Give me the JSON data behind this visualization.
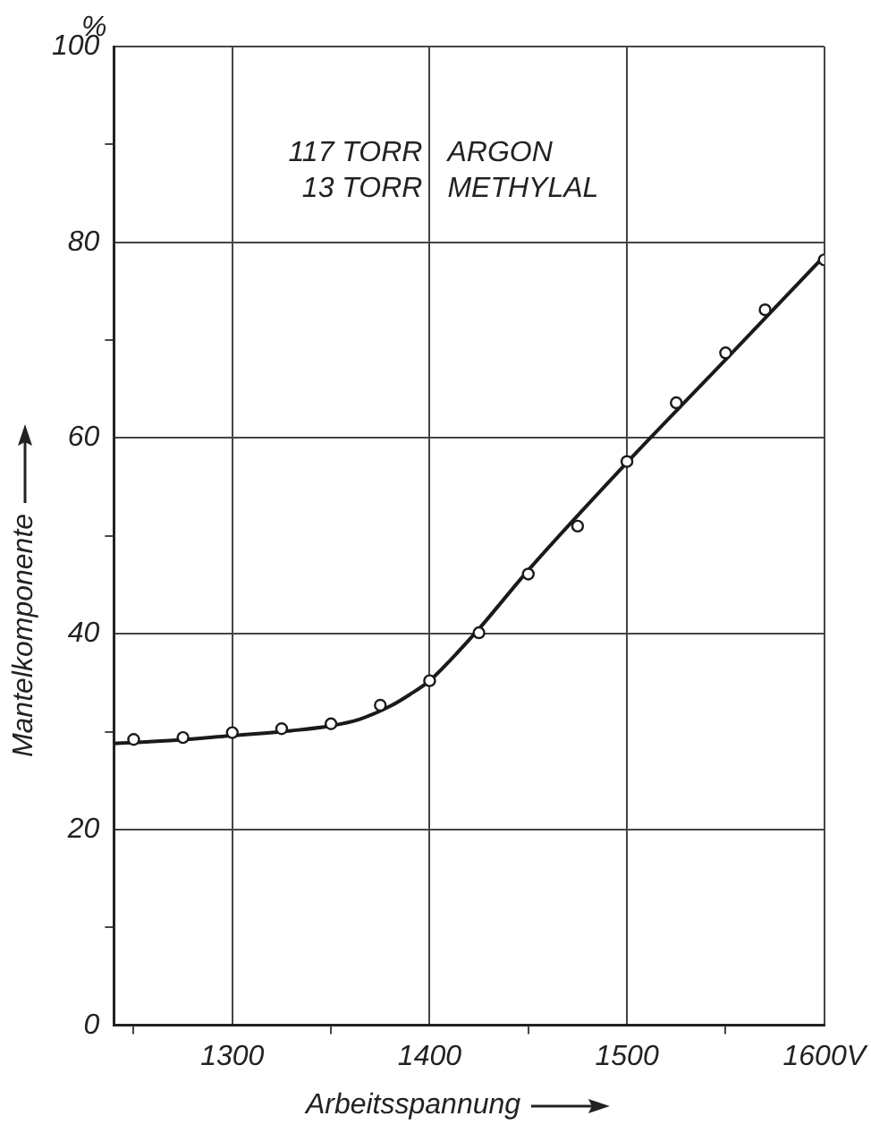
{
  "chart_data": {
    "type": "line",
    "xlabel": "Arbeitsspannung",
    "ylabel": "Mantelkomponente",
    "annotations": [
      "%",
      "117 TORR  ARGON",
      "13 TORR  METHYLAL"
    ],
    "xlim": [
      1240,
      1600
    ],
    "xticks": [
      {
        "value": 1250,
        "label": null
      },
      1300,
      {
        "value": 1350,
        "label": null
      },
      1400,
      {
        "value": 1450,
        "label": null
      },
      1500,
      {
        "value": 1550,
        "label": null
      },
      {
        "value": 1600,
        "label": "1600V"
      }
    ],
    "ylim": [
      0,
      100
    ],
    "yticks": [
      0,
      {
        "value": 10,
        "label": null
      },
      20,
      {
        "value": 30,
        "label": null
      },
      40,
      {
        "value": 50,
        "label": null
      },
      60,
      {
        "value": 70,
        "label": null
      },
      80,
      {
        "value": 90,
        "label": null
      },
      100
    ],
    "grid": true,
    "legend": false,
    "series": [
      {
        "type": "scatter",
        "color": "#1a1a1a",
        "marker": "circle",
        "x": [
          1250,
          1275,
          1300,
          1325,
          1350,
          1375,
          1400,
          1425,
          1450,
          1475,
          1500,
          1525,
          1550,
          1570,
          1600
        ],
        "values": [
          29.2,
          29.4,
          29.9,
          30.3,
          30.8,
          32.7,
          35.2,
          40.1,
          46.1,
          51.0,
          57.6,
          63.6,
          68.7,
          73.1,
          78.2
        ]
      },
      {
        "type": "line",
        "color": "#1a1a1a",
        "marker": "none",
        "line_style": "solid",
        "x": [
          1240,
          1270,
          1300,
          1330,
          1350,
          1365,
          1380,
          1390,
          1400,
          1410,
          1425,
          1450,
          1500,
          1550,
          1600
        ],
        "values": [
          28.8,
          29.1,
          29.6,
          30.1,
          30.6,
          31.3,
          32.6,
          33.8,
          35.2,
          37.2,
          40.5,
          46.5,
          57.5,
          68,
          78.6
        ]
      }
    ]
  }
}
